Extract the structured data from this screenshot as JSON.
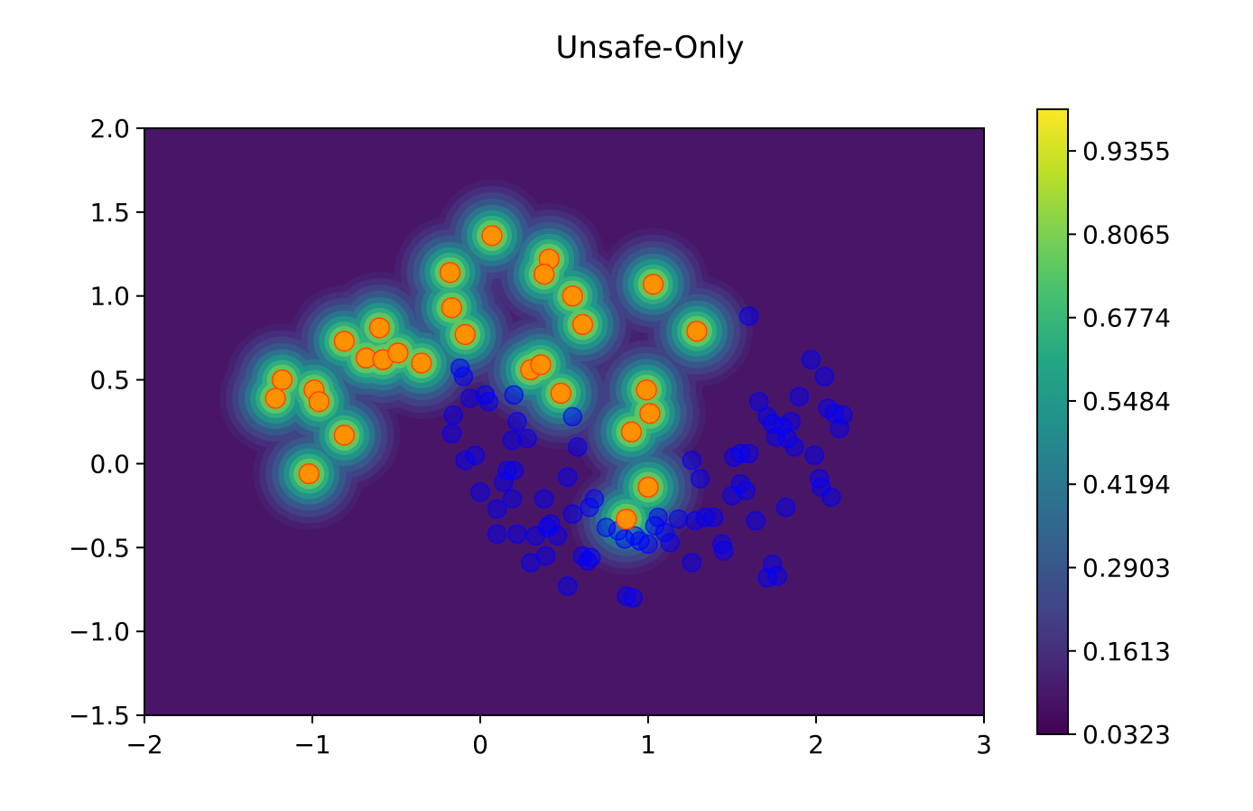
{
  "chart_data": {
    "type": "scatter",
    "title": "Unsafe-Only",
    "xlabel": "",
    "ylabel": "",
    "xlim": [
      -2,
      3
    ],
    "ylim": [
      -1.5,
      2.0
    ],
    "x_ticks": [
      "−2",
      "−1",
      "0",
      "1",
      "2",
      "3"
    ],
    "x_tick_values": [
      -2,
      -1,
      0,
      1,
      2,
      3
    ],
    "y_ticks": [
      "−1.5",
      "−1.0",
      "−0.5",
      "0.0",
      "0.5",
      "1.0",
      "1.5",
      "2.0"
    ],
    "y_tick_values": [
      -1.5,
      -1.0,
      -0.5,
      0.0,
      0.5,
      1.0,
      1.5,
      2.0
    ],
    "grid": false,
    "background": {
      "type": "contourf",
      "colormap": "viridis",
      "min": 0.0323,
      "max": 1.0,
      "description_of_field": "peaks centered on unsafe points"
    },
    "colorbar": {
      "ticks": [
        "0.0323",
        "0.1613",
        "0.2903",
        "0.4194",
        "0.5484",
        "0.6774",
        "0.8065",
        "0.9355"
      ],
      "tick_values": [
        0.0323,
        0.1613,
        0.2903,
        0.4194,
        0.5484,
        0.6774,
        0.8065,
        0.9355
      ],
      "range": [
        0.0323,
        1.0
      ]
    },
    "series": [
      {
        "color": "#ff8c00",
        "marker_edge": "#ff4500",
        "points": [
          [
            0.07,
            1.36
          ],
          [
            0.41,
            1.22
          ],
          [
            0.38,
            1.13
          ],
          [
            -0.18,
            1.14
          ],
          [
            -0.17,
            0.93
          ],
          [
            -0.09,
            0.77
          ],
          [
            0.55,
            1.0
          ],
          [
            0.61,
            0.83
          ],
          [
            1.03,
            1.07
          ],
          [
            1.29,
            0.79
          ],
          [
            -0.6,
            0.81
          ],
          [
            -0.81,
            0.73
          ],
          [
            -0.68,
            0.63
          ],
          [
            -0.58,
            0.62
          ],
          [
            -0.49,
            0.66
          ],
          [
            -0.35,
            0.6
          ],
          [
            -1.18,
            0.5
          ],
          [
            -1.22,
            0.39
          ],
          [
            -0.99,
            0.44
          ],
          [
            -0.96,
            0.37
          ],
          [
            -0.81,
            0.17
          ],
          [
            -1.02,
            -0.06
          ],
          [
            0.3,
            0.56
          ],
          [
            0.36,
            0.59
          ],
          [
            0.48,
            0.42
          ],
          [
            0.99,
            0.44
          ],
          [
            1.01,
            0.3
          ],
          [
            0.9,
            0.19
          ],
          [
            1.0,
            -0.14
          ],
          [
            0.87,
            -0.33
          ]
        ]
      },
      {
        "color": "#0000ff",
        "marker_edge": "#0000ff",
        "points": [
          [
            -0.12,
            0.57
          ],
          [
            -0.1,
            0.52
          ],
          [
            -0.06,
            0.39
          ],
          [
            0.03,
            0.41
          ],
          [
            0.05,
            0.37
          ],
          [
            0.2,
            0.41
          ],
          [
            -0.16,
            0.29
          ],
          [
            -0.17,
            0.18
          ],
          [
            0.22,
            0.25
          ],
          [
            0.19,
            0.14
          ],
          [
            -0.09,
            0.02
          ],
          [
            -0.03,
            0.05
          ],
          [
            0.16,
            -0.04
          ],
          [
            0.2,
            -0.04
          ],
          [
            0.0,
            -0.17
          ],
          [
            0.14,
            -0.11
          ],
          [
            0.19,
            -0.21
          ],
          [
            0.1,
            -0.27
          ],
          [
            0.1,
            -0.42
          ],
          [
            0.22,
            -0.42
          ],
          [
            0.38,
            -0.21
          ],
          [
            0.28,
            0.15
          ],
          [
            0.55,
            0.28
          ],
          [
            0.58,
            0.1
          ],
          [
            0.52,
            -0.08
          ],
          [
            0.55,
            -0.3
          ],
          [
            0.65,
            -0.26
          ],
          [
            0.68,
            -0.21
          ],
          [
            0.75,
            -0.38
          ],
          [
            0.82,
            -0.4
          ],
          [
            0.86,
            -0.45
          ],
          [
            0.92,
            -0.43
          ],
          [
            0.95,
            -0.46
          ],
          [
            1.0,
            -0.48
          ],
          [
            1.04,
            -0.37
          ],
          [
            1.06,
            -0.32
          ],
          [
            1.1,
            -0.41
          ],
          [
            1.13,
            -0.47
          ],
          [
            1.18,
            -0.33
          ],
          [
            1.28,
            -0.34
          ],
          [
            1.34,
            -0.32
          ],
          [
            1.39,
            -0.32
          ],
          [
            1.44,
            -0.48
          ],
          [
            1.45,
            -0.52
          ],
          [
            1.5,
            -0.19
          ],
          [
            1.55,
            -0.12
          ],
          [
            1.58,
            -0.16
          ],
          [
            1.64,
            -0.34
          ],
          [
            1.71,
            -0.68
          ],
          [
            1.74,
            -0.6
          ],
          [
            1.77,
            -0.67
          ],
          [
            1.82,
            -0.26
          ],
          [
            1.26,
            0.02
          ],
          [
            1.31,
            -0.09
          ],
          [
            1.51,
            0.04
          ],
          [
            1.55,
            0.06
          ],
          [
            1.6,
            0.06
          ],
          [
            1.66,
            0.37
          ],
          [
            1.71,
            0.28
          ],
          [
            1.74,
            0.24
          ],
          [
            1.76,
            0.16
          ],
          [
            1.8,
            0.22
          ],
          [
            1.83,
            0.15
          ],
          [
            1.85,
            0.25
          ],
          [
            1.9,
            0.4
          ],
          [
            1.97,
            0.62
          ],
          [
            1.99,
            0.05
          ],
          [
            2.05,
            0.52
          ],
          [
            2.02,
            -0.09
          ],
          [
            2.03,
            -0.14
          ],
          [
            2.07,
            0.33
          ],
          [
            2.11,
            0.3
          ],
          [
            2.14,
            0.21
          ],
          [
            2.16,
            0.29
          ],
          [
            2.09,
            -0.2
          ],
          [
            1.87,
            0.1
          ],
          [
            1.6,
            0.88
          ],
          [
            0.3,
            -0.59
          ],
          [
            0.39,
            -0.55
          ],
          [
            0.42,
            -0.36
          ],
          [
            0.46,
            -0.43
          ],
          [
            0.52,
            -0.73
          ],
          [
            0.61,
            -0.55
          ],
          [
            0.64,
            -0.58
          ],
          [
            0.87,
            -0.79
          ],
          [
            0.91,
            -0.8
          ],
          [
            1.26,
            -0.59
          ],
          [
            0.33,
            -0.43
          ],
          [
            0.4,
            -0.38
          ],
          [
            0.66,
            -0.56
          ]
        ]
      }
    ]
  }
}
